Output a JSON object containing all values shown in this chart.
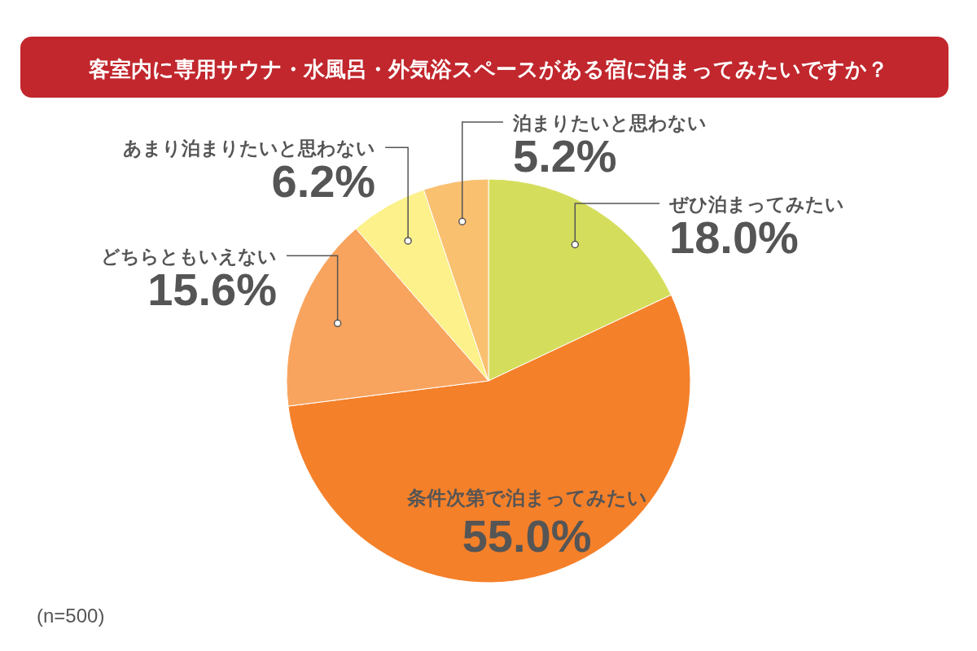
{
  "chart_data": {
    "type": "pie",
    "title": "客室内に専用サウナ・水風呂・外気浴スペースがある宿に泊まってみたいですか？",
    "categories": [
      "ぜひ泊まってみたい",
      "条件次第で泊まってみたい",
      "どちらともいえない",
      "あまり泊まりたいと思わない",
      "泊まりたいと思わない"
    ],
    "values": [
      18.0,
      55.0,
      15.6,
      6.2,
      5.2
    ],
    "value_labels": [
      "18.0%",
      "55.0%",
      "15.6%",
      "6.2%",
      "5.2%"
    ],
    "colors": [
      "#d5de5c",
      "#f5802a",
      "#f8a45e",
      "#fcf18a",
      "#f9c070"
    ],
    "annotations": [
      "(n=500)"
    ]
  }
}
